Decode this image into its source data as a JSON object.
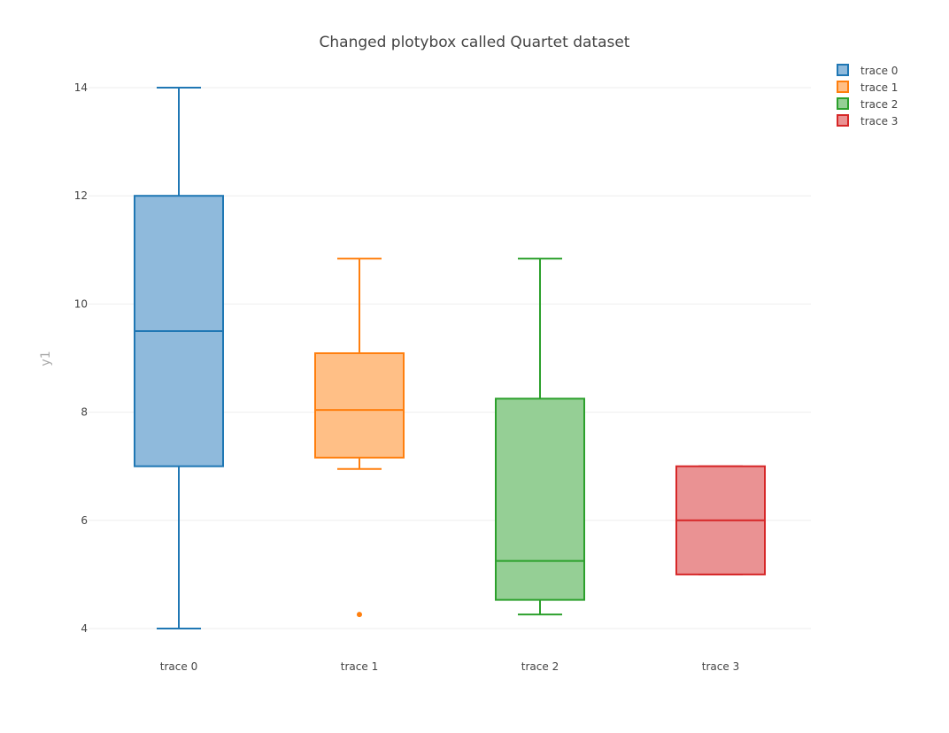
{
  "chart_data": {
    "type": "box",
    "title": "Changed plotybox called Quartet dataset",
    "xlabel": "",
    "ylabel": "y1",
    "ylim": [
      3.5,
      14.5
    ],
    "yticks": [
      4,
      6,
      8,
      10,
      12,
      14
    ],
    "grid": true,
    "legend_position": "top-right",
    "categories": [
      "trace 0",
      "trace 1",
      "trace 2",
      "trace 3"
    ],
    "series": [
      {
        "name": "trace 0",
        "color": "#1f77b4",
        "fill": "#8fbadc",
        "lower_whisker": 4,
        "q1": 7,
        "median": 9.5,
        "q3": 12,
        "upper_whisker": 14,
        "outliers": []
      },
      {
        "name": "trace 1",
        "color": "#ff7f0e",
        "fill": "#ffbf86",
        "lower_whisker": 6.95,
        "q1": 7.16,
        "median": 8.04,
        "q3": 9.09,
        "upper_whisker": 10.84,
        "outliers": [
          4.26
        ]
      },
      {
        "name": "trace 2",
        "color": "#2ca02c",
        "fill": "#95cf95",
        "lower_whisker": 4.26,
        "q1": 4.53,
        "median": 5.25,
        "q3": 8.25,
        "upper_whisker": 10.84,
        "outliers": []
      },
      {
        "name": "trace 3",
        "color": "#d62728",
        "fill": "#ea9293",
        "lower_whisker": 5,
        "q1": 5,
        "median": 6,
        "q3": 7,
        "upper_whisker": 7,
        "outliers": []
      }
    ]
  }
}
